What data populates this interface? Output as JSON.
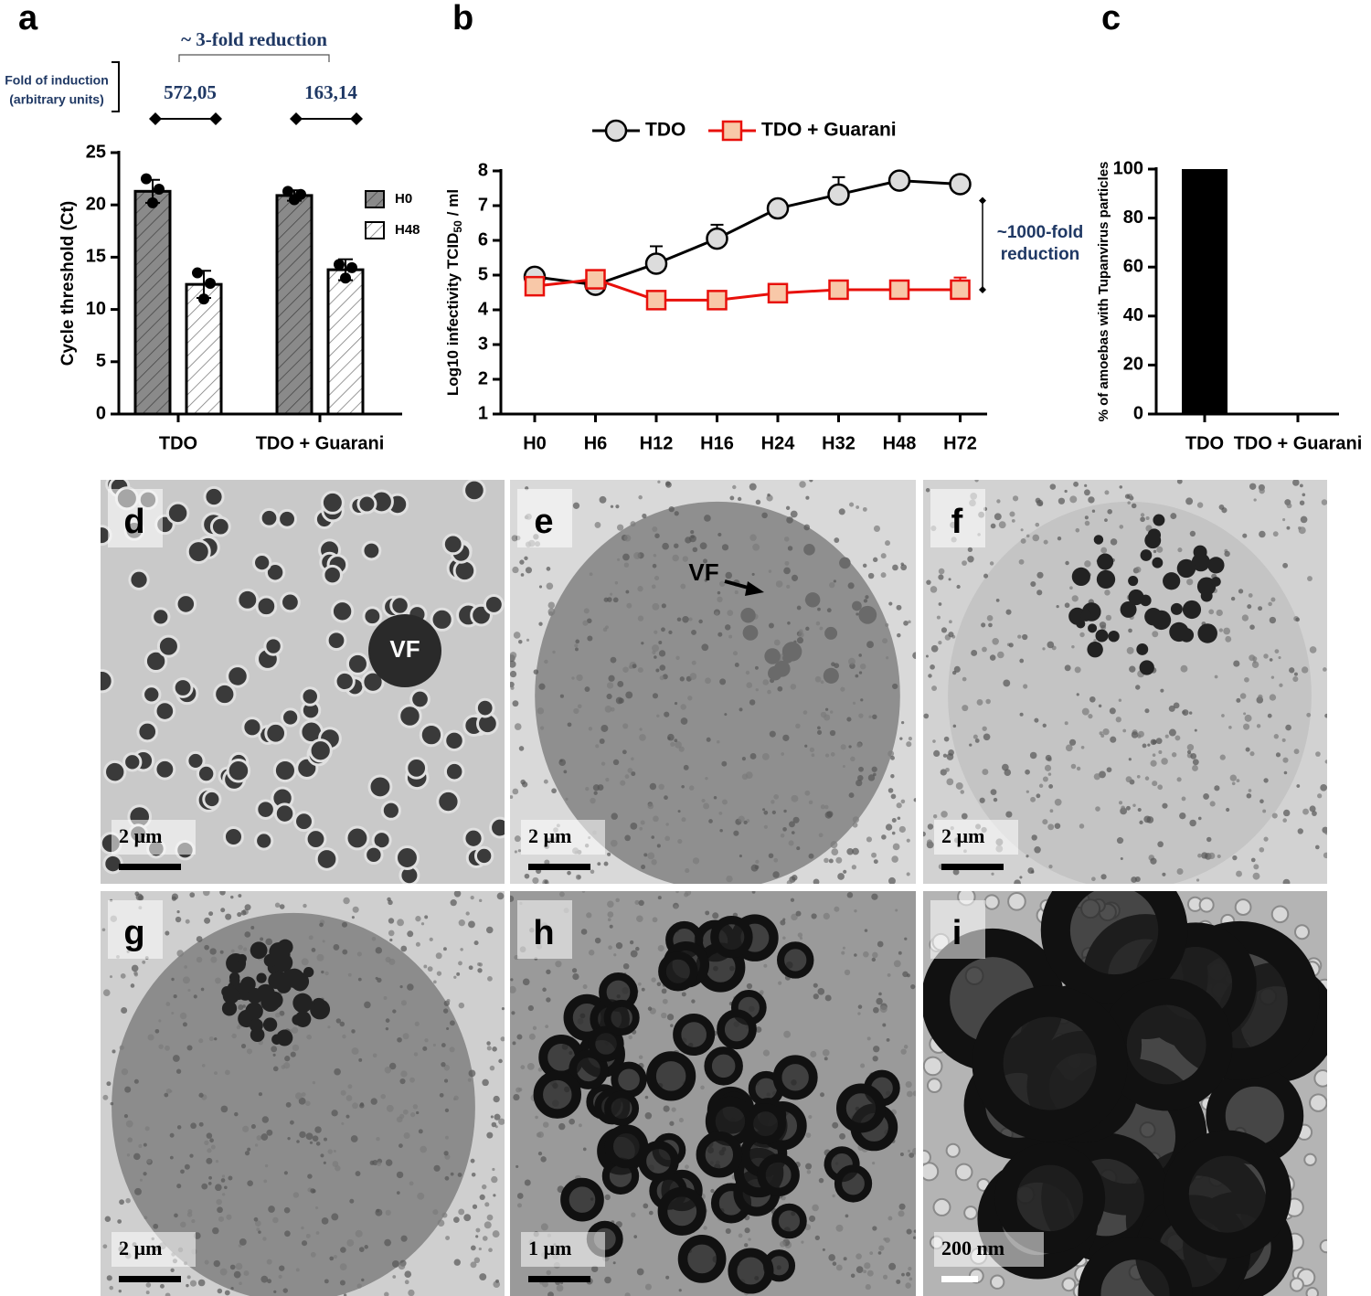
{
  "chart_data": [
    {
      "type": "bar",
      "panel": "a",
      "ylabel": "Cycle threshold (Ct)",
      "categories": [
        "TDO",
        "TDO + Guarani"
      ],
      "series": [
        {
          "name": "H0",
          "color": "#8a8a8a",
          "values": [
            21.3,
            20.9
          ],
          "errors": [
            1.1,
            0.5
          ],
          "points": [
            [
              22.5,
              21.5,
              20.2
            ],
            [
              21.3,
              21.0,
              20.5
            ]
          ]
        },
        {
          "name": "H48",
          "color": "#ffffff",
          "values": [
            12.4,
            13.8
          ],
          "errors": [
            1.3,
            1.0
          ],
          "points": [
            [
              13.5,
              12.5,
              11.0
            ],
            [
              14.3,
              14.0,
              13.0
            ]
          ]
        }
      ],
      "ylim": [
        0,
        25
      ],
      "yticks": [
        0,
        5,
        10,
        15,
        20,
        25
      ],
      "annotation": "~ 3-fold reduction",
      "fold_label": [
        "Fold of induction",
        "(arbitrary units)"
      ],
      "fold_values": [
        "572,05",
        "163,14"
      ]
    },
    {
      "type": "line",
      "panel": "b",
      "ylabel": "Log10 infectivity TCID",
      "ylabel_subscript": "50",
      "ylabel_suffix": "/ ml",
      "categories": [
        "H0",
        "H6",
        "H12",
        "H16",
        "H24",
        "H32",
        "H48",
        "H72"
      ],
      "series": [
        {
          "name": "TDO",
          "color": "#000000",
          "marker": "circle",
          "marker_fill": "#dcdcdc",
          "values": [
            4.95,
            4.72,
            5.33,
            6.05,
            6.92,
            7.32,
            7.72,
            7.62
          ],
          "errors": [
            0,
            0,
            0.5,
            0.4,
            0,
            0.5,
            0,
            0
          ]
        },
        {
          "name": "TDO + Guarani",
          "color": "#e8100b",
          "marker": "square",
          "marker_fill": "#f8c8a8",
          "values": [
            4.68,
            4.88,
            4.28,
            4.28,
            4.48,
            4.58,
            4.58,
            4.58
          ],
          "errors": [
            0,
            0,
            0,
            0.2,
            0,
            0,
            0,
            0.35
          ]
        }
      ],
      "ylim": [
        1,
        8
      ],
      "yticks": [
        1,
        2,
        3,
        4,
        5,
        6,
        7,
        8
      ],
      "annotation": [
        "~1000-fold",
        "reduction"
      ]
    },
    {
      "type": "bar",
      "panel": "c",
      "ylabel": "% of amoebas with Tupanvirus particles",
      "categories": [
        "TDO",
        "TDO + Guarani"
      ],
      "values": [
        100,
        0
      ],
      "color": "#000000",
      "ylim": [
        0,
        100
      ],
      "yticks": [
        0,
        20,
        40,
        60,
        80,
        100
      ]
    }
  ],
  "micrographs": [
    {
      "panel": "d",
      "scale": "2 µm",
      "annotation": "VF"
    },
    {
      "panel": "e",
      "scale": "2 µm",
      "annotation": "VF"
    },
    {
      "panel": "f",
      "scale": "2 µm"
    },
    {
      "panel": "g",
      "scale": "2 µm"
    },
    {
      "panel": "h",
      "scale": "1 µm"
    },
    {
      "panel": "i",
      "scale": "200 nm"
    }
  ]
}
